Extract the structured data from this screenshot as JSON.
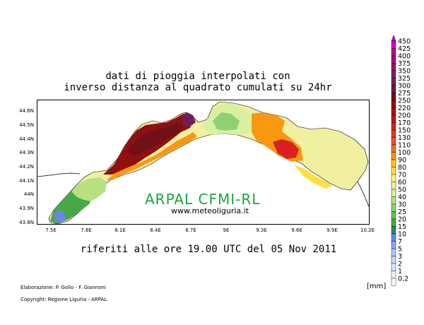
{
  "title_line1": "dati di pioggia interpolati con",
  "title_line2": "inverso distanza al quadrato cumulati su 24hr",
  "subtitle": "riferiti alle ore 19.00 UTC del 05 Nov 2011",
  "watermark": "ARPAL CFMI-RL",
  "website": "www.meteoliguria.it",
  "credit_authors": "Elaborazione: P. Gollo - F. Giannoni",
  "credit_copyright": "Copyright: Regione Liguria - ARPAL",
  "unit": "[mm]",
  "latitude_labels": [
    "44.6N",
    "44.5N",
    "44.4N",
    "44.3N",
    "44.2N",
    "44.1N",
    "44N",
    "43.9N",
    "43.8N"
  ],
  "longitude_labels": [
    "7.5E",
    "7.8E",
    "8.1E",
    "8.4E",
    "8.7E",
    "9E",
    "9.3E",
    "9.6E",
    "9.9E",
    "10.2E"
  ],
  "legend": {
    "levels": [
      "450",
      "425",
      "400",
      "375",
      "350",
      "325",
      "300",
      "275",
      "250",
      "220",
      "200",
      "170",
      "150",
      "130",
      "110",
      "100",
      "90",
      "80",
      "70",
      "60",
      "50",
      "40",
      "30",
      "25",
      "20",
      "15",
      "10",
      "7",
      "5",
      "3",
      "2",
      "1",
      "0.2"
    ],
    "colors": [
      "#d000d0",
      "#b01090",
      "#a01078",
      "#901868",
      "#802060",
      "#702058",
      "#602048",
      "#701018",
      "#901010",
      "#a81010",
      "#c01818",
      "#d82020",
      "#e83828",
      "#f05030",
      "#f07020",
      "#f89810",
      "#ffc810",
      "#ffe040",
      "#fff080",
      "#f0f0a0",
      "#d8f0a0",
      "#b8e080",
      "#90d070",
      "#68c060",
      "#48a848",
      "#2e8b57",
      "#6688ee",
      "#8aa6f4",
      "#aec4f8",
      "#c8d8fc",
      "#dce6fe",
      "#eef2ff",
      "#ffffff"
    ]
  }
}
